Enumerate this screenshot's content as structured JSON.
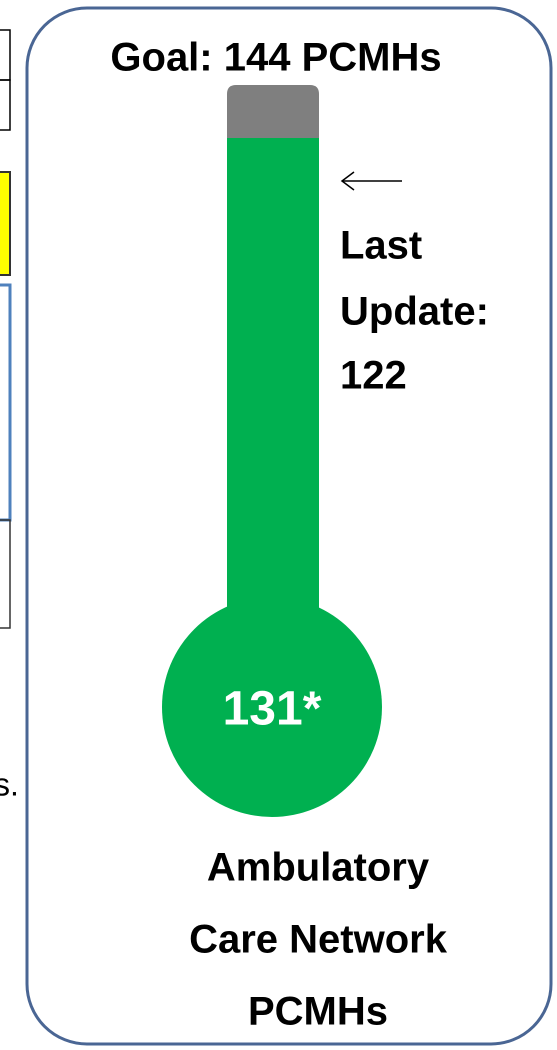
{
  "goal_label": "Goal:  144 PCMHs",
  "current_label": "131*",
  "last_update": [
    "Last",
    "Update:",
    "122"
  ],
  "caption": [
    "Ambulatory",
    "Care Network",
    "PCMHs"
  ],
  "fragment_text": "s."
}
